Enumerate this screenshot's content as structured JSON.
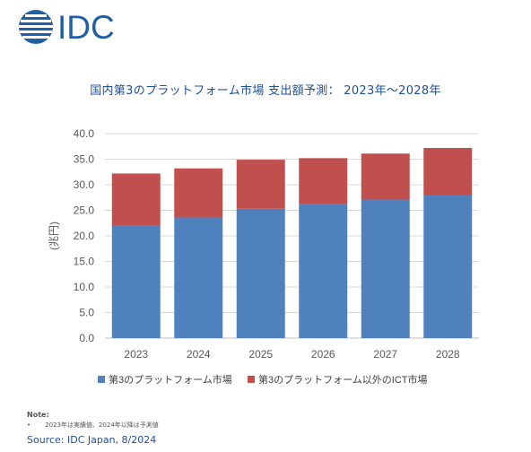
{
  "logo": {
    "text": "IDC"
  },
  "title": "国内第3のプラットフォーム市場 支出額予測： 2023年～2028年",
  "chart_data": {
    "type": "bar",
    "stacked": true,
    "categories": [
      "2023",
      "2024",
      "2025",
      "2026",
      "2027",
      "2028"
    ],
    "series": [
      {
        "name": "第3のプラットフォーム市場",
        "color": "#4f81bd",
        "values": [
          22.0,
          23.6,
          25.3,
          26.2,
          27.1,
          27.9
        ]
      },
      {
        "name": "第3のプラットフォーム以外のICT市場",
        "color": "#c0504d",
        "values": [
          10.2,
          9.6,
          9.6,
          9.0,
          9.0,
          9.3
        ]
      }
    ],
    "ylabel": "(兆円)",
    "ylim": [
      0,
      40
    ],
    "yticks": [
      "0.0",
      "5.0",
      "10.0",
      "15.0",
      "20.0",
      "25.0",
      "30.0",
      "35.0",
      "40.0"
    ],
    "ytick_values": [
      0,
      5,
      10,
      15,
      20,
      25,
      30,
      35,
      40
    ],
    "grid": true,
    "legend": "bottom"
  },
  "note": {
    "label": "Note:",
    "bullet": "•",
    "text": "2023年は実績値、2024年以降は予測値"
  },
  "source": "Source: IDC Japan, 8/2024"
}
